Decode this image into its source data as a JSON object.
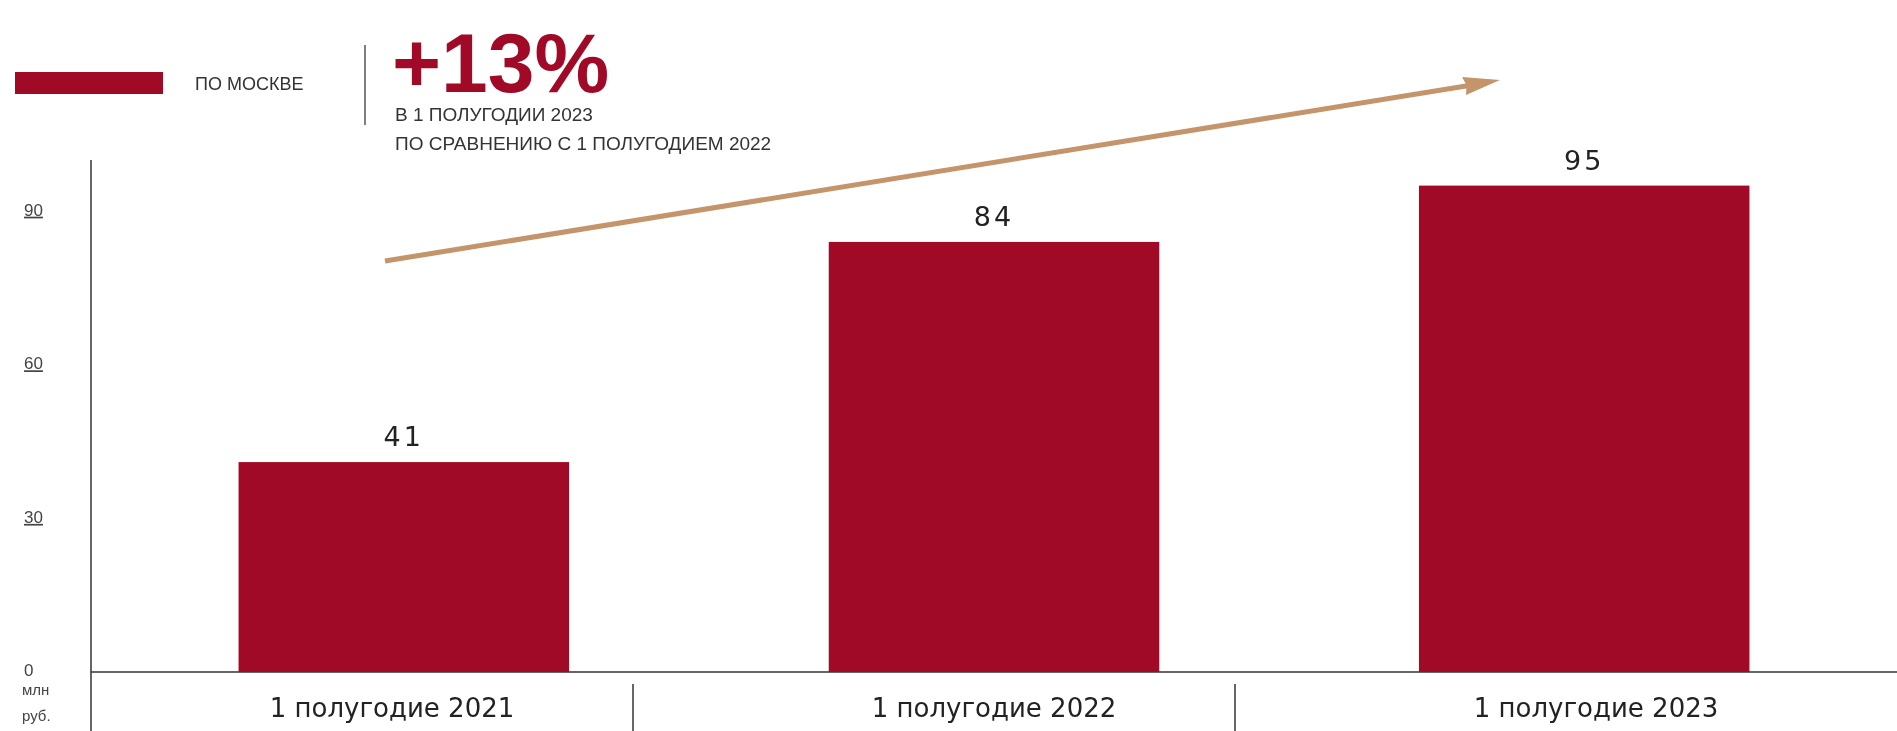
{
  "chart_data": {
    "type": "bar",
    "categories": [
      "1 полугодие 2021",
      "1 полугодие 2022",
      "1 полугодие 2023"
    ],
    "series": [
      {
        "name": "ПО МОСКВЕ",
        "color": "#a10a26",
        "values": [
          41,
          84,
          95
        ]
      }
    ],
    "ylim": [
      0,
      100
    ],
    "yticks": [
      0,
      30,
      60,
      90
    ],
    "ylabel": "млн руб.",
    "data_labels": true,
    "legend": "top left",
    "grid": false,
    "annotations": [
      "+13%",
      "В 1 ПОЛУГОДИИ 2023",
      "ПО СРАВНЕНИЮ С 1 ПОЛУГОДИЕМ 2022"
    ]
  }
}
